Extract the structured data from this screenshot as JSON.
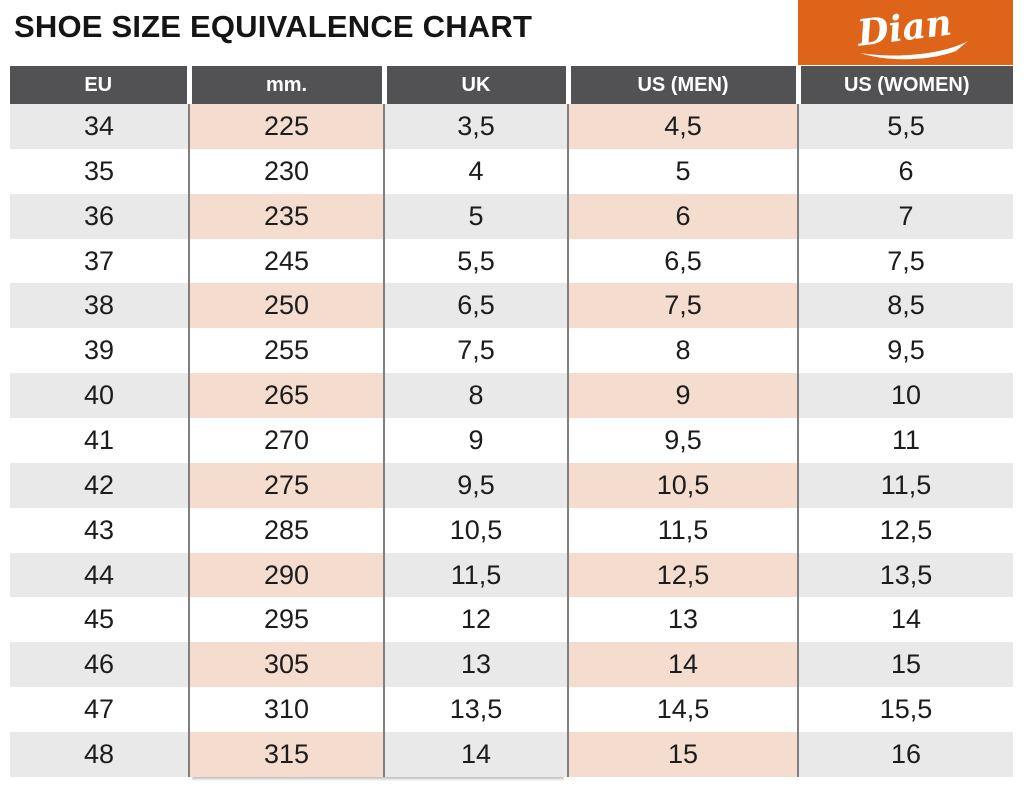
{
  "title": "SHOE SIZE EQUIVALENCE CHART",
  "logo": {
    "brand": "Dian",
    "bg_color": "#dd6418",
    "text_color": "#ffffff"
  },
  "colors": {
    "header_gray": "#525255",
    "row_gray": "#e9e9e9",
    "row_peach": "#f4dcce",
    "accent_orange": "#dd6418",
    "divider_gray": "#7f7f7f"
  },
  "chart_data": {
    "type": "table",
    "title": "SHOE SIZE EQUIVALENCE CHART",
    "columns": [
      "EU",
      "mm.",
      "UK",
      "US (MEN)",
      "US (WOMEN)"
    ],
    "rows": [
      [
        "34",
        "225",
        "3,5",
        "4,5",
        "5,5"
      ],
      [
        "35",
        "230",
        "4",
        "5",
        "6"
      ],
      [
        "36",
        "235",
        "5",
        "6",
        "7"
      ],
      [
        "37",
        "245",
        "5,5",
        "6,5",
        "7,5"
      ],
      [
        "38",
        "250",
        "6,5",
        "7,5",
        "8,5"
      ],
      [
        "39",
        "255",
        "7,5",
        "8",
        "9,5"
      ],
      [
        "40",
        "265",
        "8",
        "9",
        "10"
      ],
      [
        "41",
        "270",
        "9",
        "9,5",
        "11"
      ],
      [
        "42",
        "275",
        "9,5",
        "10,5",
        "11,5"
      ],
      [
        "43",
        "285",
        "10,5",
        "11,5",
        "12,5"
      ],
      [
        "44",
        "290",
        "11,5",
        "12,5",
        "13,5"
      ],
      [
        "45",
        "295",
        "12",
        "13",
        "14"
      ],
      [
        "46",
        "305",
        "13",
        "14",
        "15"
      ],
      [
        "47",
        "310",
        "13,5",
        "14,5",
        "15,5"
      ],
      [
        "48",
        "315",
        "14",
        "15",
        "16"
      ]
    ]
  }
}
